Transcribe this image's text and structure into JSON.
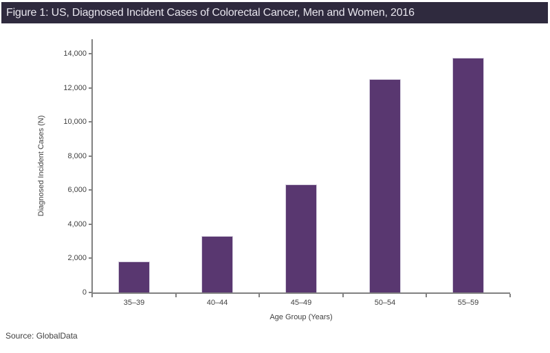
{
  "header": {
    "title": "Figure 1: US, Diagnosed Incident Cases of Colorectal Cancer, Men and Women, 2016",
    "bg_color": "#2F2A3E",
    "text_color": "#E8E6EE"
  },
  "chart_data": {
    "type": "bar",
    "title": "Figure 1: US, Diagnosed Incident Cases of Colorectal Cancer, Men and Women, 2016",
    "categories": [
      "35–39",
      "40–44",
      "45–49",
      "50–54",
      "55–59"
    ],
    "values": [
      1800,
      3300,
      6350,
      12500,
      13750
    ],
    "xlabel": "Age Group (Years)",
    "ylabel": "Diagnosed Incident Cases (N)",
    "ylim": [
      0,
      14000
    ],
    "ytick_step": 2000,
    "ytick_labels": [
      "0",
      "2,000",
      "4,000",
      "6,000",
      "8,000",
      "10,000",
      "12,000",
      "14,000"
    ],
    "bar_color": "#593770",
    "bar_edge_color": "#D5CFDE",
    "axis_color": "#808080",
    "grid": false,
    "legend_position": "none"
  },
  "footer": {
    "source_label": "Source: GlobalData"
  }
}
